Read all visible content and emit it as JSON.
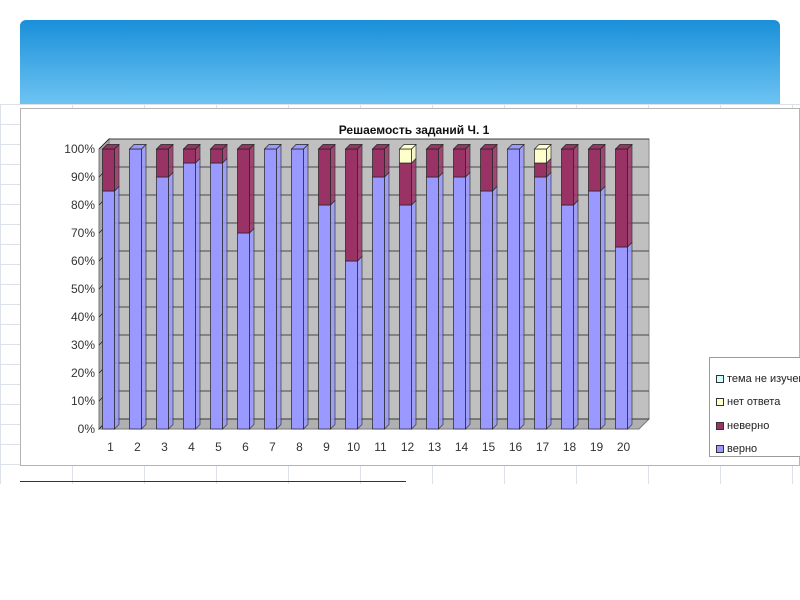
{
  "chart_data": {
    "type": "bar",
    "stacked": true,
    "three_d": true,
    "title": "Решаемость заданий Ч. 1",
    "categories": [
      "1",
      "2",
      "3",
      "4",
      "5",
      "6",
      "7",
      "8",
      "9",
      "10",
      "11",
      "12",
      "13",
      "14",
      "15",
      "16",
      "17",
      "18",
      "19",
      "20"
    ],
    "series": [
      {
        "name": "верно",
        "color": "#9999ff",
        "values": [
          85,
          100,
          90,
          95,
          95,
          70,
          100,
          100,
          80,
          60,
          90,
          80,
          90,
          90,
          85,
          100,
          90,
          80,
          85,
          65
        ]
      },
      {
        "name": "неверно",
        "color": "#993366",
        "values": [
          15,
          0,
          10,
          5,
          5,
          30,
          0,
          0,
          20,
          40,
          10,
          15,
          10,
          10,
          15,
          0,
          5,
          20,
          15,
          35
        ]
      },
      {
        "name": "нет ответа",
        "color": "#ffffcc",
        "values": [
          0,
          0,
          0,
          0,
          0,
          0,
          0,
          0,
          0,
          0,
          0,
          5,
          0,
          0,
          0,
          0,
          5,
          0,
          0,
          0
        ]
      },
      {
        "name": "тема не изучена",
        "color": "#ccffff",
        "values": [
          0,
          0,
          0,
          0,
          0,
          0,
          0,
          0,
          0,
          0,
          0,
          0,
          0,
          0,
          0,
          0,
          0,
          0,
          0,
          0
        ]
      }
    ],
    "yticks": [
      "0%",
      "10%",
      "20%",
      "30%",
      "40%",
      "50%",
      "60%",
      "70%",
      "80%",
      "90%",
      "100%"
    ],
    "ylim": [
      0,
      100
    ],
    "grid": true,
    "legend_position": "right",
    "wall_color": "#c0c0c0"
  }
}
